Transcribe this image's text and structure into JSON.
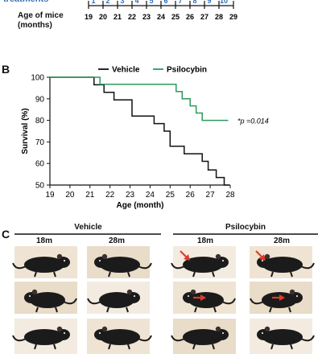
{
  "timeline": {
    "treatments_label": "treatments",
    "treatments": [
      "1",
      "2",
      "3",
      "4",
      "5",
      "6",
      "7",
      "8",
      "9",
      "10"
    ],
    "age_label_line1": "Age of mice",
    "age_label_line2": "(months)",
    "ages": [
      "19",
      "20",
      "21",
      "22",
      "23",
      "24",
      "25",
      "26",
      "27",
      "28",
      "29"
    ]
  },
  "panel_b": {
    "letter": "B"
  },
  "panel_c": {
    "letter": "C",
    "group_vehicle": "Vehicle",
    "group_psilocybin": "Psilocybin",
    "time_18": "18m",
    "time_28": "28m",
    "colors": {
      "arrow": "#e23b2b",
      "bg": "#f1e6d4",
      "mouse": "#1b1b1b"
    }
  },
  "chart_data": {
    "type": "line",
    "xlabel": "Age (month)",
    "ylabel": "Survival (%)",
    "xlim": [
      19,
      28
    ],
    "ylim": [
      50,
      100
    ],
    "xticks": [
      "19",
      "20",
      "21",
      "22",
      "23",
      "24",
      "25",
      "26",
      "27",
      "28"
    ],
    "yticks": [
      "50",
      "60",
      "70",
      "80",
      "90",
      "100"
    ],
    "annotation": "*p =0.014",
    "legend_position": "top",
    "series": [
      {
        "name": "Vehicle",
        "color": "#111111",
        "x": [
          19,
          21.2,
          21.2,
          21.7,
          21.7,
          22.2,
          22.2,
          23.1,
          23.1,
          24.2,
          24.2,
          24.7,
          24.7,
          25.0,
          25.0,
          25.7,
          25.7,
          26.6,
          26.6,
          26.9,
          26.9,
          27.3,
          27.3,
          27.7,
          27.7,
          27.95
        ],
        "y": [
          100,
          100,
          96.5,
          96.5,
          93,
          93,
          89.5,
          89.5,
          82,
          82,
          78.5,
          78.5,
          75,
          75,
          68,
          68,
          64.5,
          64.5,
          61,
          61,
          57,
          57,
          53.5,
          53.5,
          50,
          50
        ]
      },
      {
        "name": "Psilocybin",
        "color": "#2e9a5c",
        "x": [
          19,
          21.5,
          21.5,
          25.3,
          25.3,
          25.6,
          25.6,
          26.0,
          26.0,
          26.3,
          26.3,
          26.6,
          26.6,
          26.9,
          26.9,
          27.9
        ],
        "y": [
          100,
          100,
          96.7,
          96.7,
          93.4,
          93.4,
          90,
          90,
          86.7,
          86.7,
          83.4,
          83.4,
          80,
          80,
          80,
          80
        ]
      }
    ]
  }
}
